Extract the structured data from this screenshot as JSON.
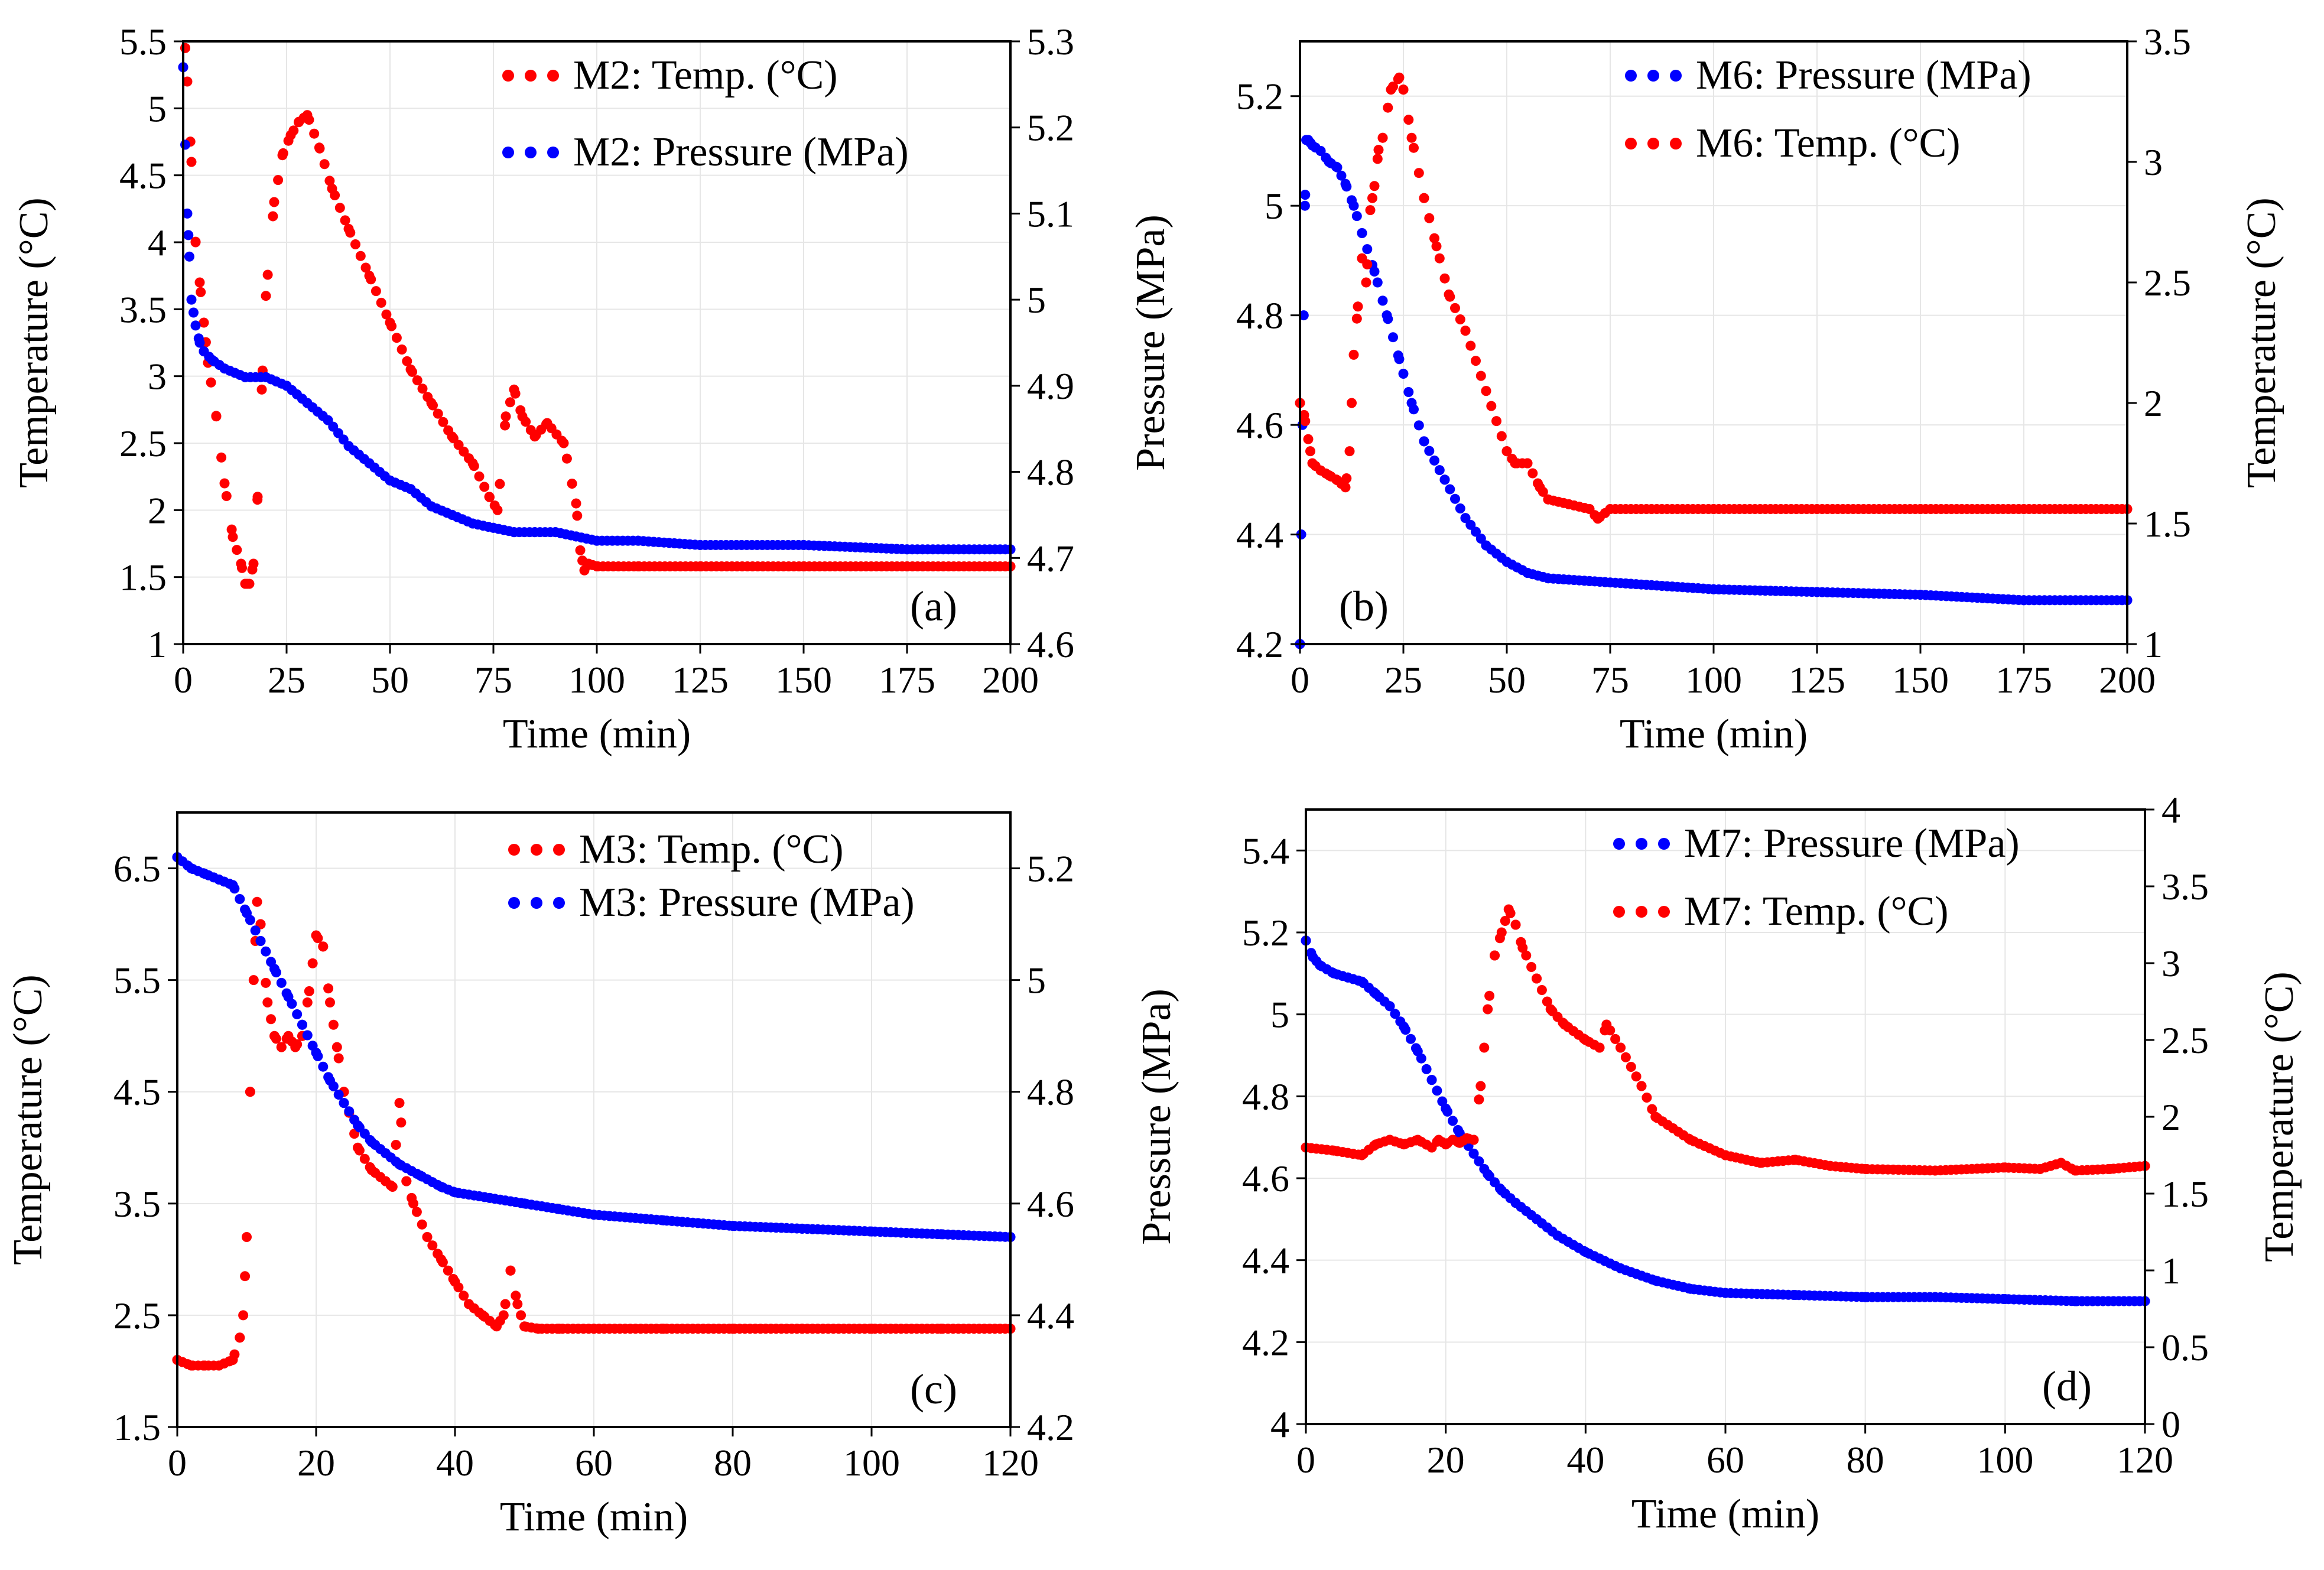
{
  "colors": {
    "temp": "#ff0000",
    "pressure": "#0000ff"
  },
  "chart_data": [
    {
      "id": "a",
      "type": "scatter",
      "panel_label": "(a)",
      "xlabel": "Time (min)",
      "left_axis": {
        "label": "Temperature (°C)",
        "series": "temp",
        "ylim": [
          1,
          5.5
        ],
        "ticks": [
          1,
          1.5,
          2,
          2.5,
          3,
          3.5,
          4,
          4.5,
          5,
          5.5
        ],
        "tick_labels": [
          "1",
          "1.5",
          "2",
          "2.5",
          "3",
          "3.5",
          "4",
          "4.5",
          "5",
          "5.5"
        ]
      },
      "right_axis": {
        "label": "",
        "series": "pressure",
        "ylim": [
          4.6,
          5.3
        ],
        "ticks": [
          4.6,
          4.7,
          4.8,
          4.9,
          5.0,
          5.1,
          5.2,
          5.3
        ],
        "tick_labels": [
          "4.6",
          "4.7",
          "4.8",
          "4.9",
          "5",
          "5.1",
          "5.2",
          "5.3"
        ]
      },
      "xlim": [
        0,
        200
      ],
      "xticks": [
        0,
        25,
        50,
        75,
        100,
        125,
        150,
        175,
        200
      ],
      "xtick_labels": [
        "0",
        "25",
        "50",
        "75",
        "100",
        "125",
        "150",
        "175",
        "200"
      ],
      "legend": [
        "M2: Temp. (°C)",
        "M2: Pressure (MPa)"
      ],
      "series": [
        {
          "name": "M2: Temp. (°C)",
          "key": "temp",
          "axis": "left",
          "x": [
            0.5,
            1,
            2,
            3,
            4,
            5,
            6,
            8,
            10,
            12,
            14,
            15,
            16,
            17,
            18,
            19,
            20,
            22,
            24,
            26,
            28,
            30,
            33,
            36,
            40,
            45,
            50,
            55,
            60,
            65,
            70,
            74,
            76,
            78,
            80,
            82,
            85,
            88,
            92,
            95,
            96,
            97,
            98,
            100,
            110,
            125,
            150,
            175,
            200
          ],
          "y": [
            5.45,
            5.2,
            4.6,
            4.0,
            3.7,
            3.4,
            3.1,
            2.7,
            2.2,
            1.8,
            1.6,
            1.45,
            1.45,
            1.6,
            2.1,
            2.9,
            3.6,
            4.3,
            4.65,
            4.8,
            4.9,
            4.95,
            4.7,
            4.4,
            4.1,
            3.75,
            3.4,
            3.05,
            2.8,
            2.55,
            2.35,
            2.1,
            2.0,
            2.7,
            2.9,
            2.7,
            2.55,
            2.65,
            2.5,
            2.05,
            1.7,
            1.55,
            1.6,
            1.58,
            1.58,
            1.58,
            1.58,
            1.58,
            1.58
          ]
        },
        {
          "name": "M2: Pressure (MPa)",
          "key": "pressure",
          "axis": "right",
          "x": [
            0,
            0.5,
            1,
            1.5,
            2,
            3,
            4,
            5,
            7,
            10,
            15,
            20,
            25,
            30,
            35,
            40,
            45,
            50,
            55,
            60,
            65,
            70,
            75,
            80,
            85,
            90,
            95,
            100,
            110,
            125,
            150,
            175,
            200
          ],
          "y": [
            5.27,
            5.18,
            5.1,
            5.05,
            5.0,
            4.97,
            4.95,
            4.94,
            4.93,
            4.92,
            4.91,
            4.91,
            4.9,
            4.88,
            4.86,
            4.83,
            4.81,
            4.79,
            4.78,
            4.76,
            4.75,
            4.74,
            4.735,
            4.73,
            4.73,
            4.73,
            4.725,
            4.72,
            4.72,
            4.715,
            4.715,
            4.71,
            4.71
          ]
        }
      ]
    },
    {
      "id": "b",
      "type": "scatter",
      "panel_label": "(b)",
      "xlabel": "Time (min)",
      "left_axis": {
        "label": "Pressure (MPa)",
        "series": "pressure",
        "ylim": [
          4.2,
          5.3
        ],
        "ticks": [
          4.2,
          4.4,
          4.6,
          4.8,
          5.0,
          5.2
        ],
        "tick_labels": [
          "4.2",
          "4.4",
          "4.6",
          "4.8",
          "5",
          "5.2"
        ]
      },
      "right_axis": {
        "label": "Temperature (°C)",
        "series": "temp",
        "ylim": [
          1,
          3.5
        ],
        "ticks": [
          1,
          1.5,
          2,
          2.5,
          3,
          3.5
        ],
        "tick_labels": [
          "1",
          "1.5",
          "2",
          "2.5",
          "3",
          "3.5"
        ]
      },
      "xlim": [
        0,
        200
      ],
      "xticks": [
        0,
        25,
        50,
        75,
        100,
        125,
        150,
        175,
        200
      ],
      "xtick_labels": [
        "0",
        "25",
        "50",
        "75",
        "100",
        "125",
        "150",
        "175",
        "200"
      ],
      "legend": [
        "M6: Pressure (MPa)",
        "M6: Temp. (°C)"
      ],
      "series": [
        {
          "name": "M6: Pressure (MPa)",
          "key": "pressure",
          "axis": "left",
          "x": [
            0,
            0.3,
            0.6,
            0.9,
            1.2,
            1.5,
            2,
            3,
            5,
            7,
            9,
            11,
            13,
            15,
            18,
            21,
            24,
            27,
            30,
            35,
            40,
            45,
            50,
            55,
            60,
            70,
            80,
            100,
            125,
            150,
            175,
            200
          ],
          "y": [
            4.2,
            4.4,
            4.6,
            4.8,
            5.0,
            5.12,
            5.12,
            5.11,
            5.1,
            5.08,
            5.07,
            5.04,
            5.0,
            4.95,
            4.88,
            4.8,
            4.72,
            4.64,
            4.57,
            4.5,
            4.43,
            4.38,
            4.35,
            4.33,
            4.32,
            4.315,
            4.31,
            4.3,
            4.295,
            4.29,
            4.28,
            4.28
          ]
        },
        {
          "name": "M6: Temp. (°C)",
          "key": "temp",
          "axis": "right",
          "x": [
            0,
            1,
            2,
            3,
            5,
            7,
            9,
            11,
            12,
            13,
            14,
            15,
            16,
            17,
            18,
            19,
            20,
            22,
            24,
            25,
            27,
            30,
            33,
            36,
            40,
            45,
            50,
            52,
            55,
            58,
            60,
            65,
            70,
            72,
            75,
            100,
            125,
            150,
            175,
            200
          ],
          "y": [
            2.0,
            1.95,
            1.85,
            1.75,
            1.72,
            1.7,
            1.68,
            1.65,
            1.8,
            2.2,
            2.4,
            2.6,
            2.5,
            2.8,
            2.9,
            3.05,
            3.1,
            3.3,
            3.35,
            3.3,
            3.1,
            2.85,
            2.65,
            2.45,
            2.3,
            2.05,
            1.8,
            1.75,
            1.75,
            1.65,
            1.6,
            1.58,
            1.56,
            1.52,
            1.56,
            1.56,
            1.56,
            1.56,
            1.56,
            1.56
          ]
        }
      ]
    },
    {
      "id": "c",
      "type": "scatter",
      "panel_label": "(c)",
      "xlabel": "Time (min)",
      "left_axis": {
        "label": "Temperature (°C)",
        "series": "temp",
        "ylim": [
          1.5,
          7.0
        ],
        "ticks": [
          1.5,
          2.5,
          3.5,
          4.5,
          5.5,
          6.5
        ],
        "tick_labels": [
          "1.5",
          "2.5",
          "3.5",
          "4.5",
          "5.5",
          "6.5"
        ]
      },
      "right_axis": {
        "label": "",
        "series": "pressure",
        "ylim": [
          4.2,
          5.3
        ],
        "ticks": [
          4.2,
          4.4,
          4.6,
          4.8,
          5.0,
          5.2
        ],
        "tick_labels": [
          "4.2",
          "4.4",
          "4.6",
          "4.8",
          "5",
          "5.2"
        ]
      },
      "xlim": [
        0,
        120
      ],
      "xticks": [
        0,
        20,
        40,
        60,
        80,
        100,
        120
      ],
      "xtick_labels": [
        "0",
        "20",
        "40",
        "60",
        "80",
        "100",
        "120"
      ],
      "legend": [
        "M3: Temp. (°C)",
        "M3: Pressure (MPa)"
      ],
      "series": [
        {
          "name": "M3: Temp. (°C)",
          "key": "temp",
          "axis": "left",
          "x": [
            0,
            2,
            4,
            6,
            8,
            9,
            9.5,
            10,
            10.5,
            11,
            11.5,
            12,
            13,
            14,
            15,
            16,
            17,
            18,
            19,
            20,
            21,
            22,
            23,
            24,
            26,
            28,
            30,
            31,
            32,
            33,
            34,
            36,
            38,
            40,
            42,
            44,
            46,
            47,
            48,
            49,
            50,
            52,
            55,
            60,
            70,
            80,
            90,
            100,
            110,
            120
          ],
          "y": [
            2.1,
            2.05,
            2.05,
            2.05,
            2.1,
            2.3,
            2.5,
            3.2,
            4.5,
            5.5,
            6.2,
            6.0,
            5.3,
            5.0,
            4.9,
            5.0,
            4.9,
            5.0,
            5.4,
            5.9,
            5.8,
            5.3,
            4.9,
            4.5,
            4.0,
            3.8,
            3.7,
            3.65,
            4.4,
            3.7,
            3.5,
            3.2,
            3.0,
            2.8,
            2.6,
            2.5,
            2.4,
            2.5,
            2.9,
            2.6,
            2.4,
            2.38,
            2.38,
            2.38,
            2.38,
            2.38,
            2.38,
            2.38,
            2.38,
            2.38
          ]
        },
        {
          "name": "M3: Pressure (MPa)",
          "key": "pressure",
          "axis": "right",
          "x": [
            0,
            2,
            4,
            6,
            8,
            10,
            12,
            14,
            16,
            18,
            20,
            22,
            24,
            26,
            28,
            30,
            32,
            35,
            38,
            40,
            45,
            50,
            55,
            60,
            70,
            80,
            90,
            100,
            110,
            120
          ],
          "y": [
            5.22,
            5.2,
            5.19,
            5.18,
            5.17,
            5.12,
            5.07,
            5.02,
            4.97,
            4.92,
            4.87,
            4.82,
            4.78,
            4.74,
            4.71,
            4.69,
            4.67,
            4.65,
            4.63,
            4.62,
            4.61,
            4.6,
            4.59,
            4.58,
            4.57,
            4.56,
            4.555,
            4.55,
            4.545,
            4.54
          ]
        }
      ]
    },
    {
      "id": "d",
      "type": "scatter",
      "panel_label": "(d)",
      "xlabel": "Time (min)",
      "left_axis": {
        "label": "Pressure (MPa)",
        "series": "pressure",
        "ylim": [
          4.0,
          5.5
        ],
        "ticks": [
          4.0,
          4.2,
          4.4,
          4.6,
          4.8,
          5.0,
          5.2,
          5.4
        ],
        "tick_labels": [
          "4",
          "4.2",
          "4.4",
          "4.6",
          "4.8",
          "5",
          "5.2",
          "5.4"
        ]
      },
      "right_axis": {
        "label": "Temperature (°C)",
        "series": "temp",
        "ylim": [
          0,
          4
        ],
        "ticks": [
          0,
          0.5,
          1,
          1.5,
          2,
          2.5,
          3,
          3.5,
          4
        ],
        "tick_labels": [
          "0",
          "0.5",
          "1",
          "1.5",
          "2",
          "2.5",
          "3",
          "3.5",
          "4"
        ]
      },
      "xlim": [
        0,
        120
      ],
      "xticks": [
        0,
        20,
        40,
        60,
        80,
        100,
        120
      ],
      "xtick_labels": [
        "0",
        "20",
        "40",
        "60",
        "80",
        "100",
        "120"
      ],
      "legend": [
        "M7: Pressure (MPa)",
        "M7: Temp. (°C)"
      ],
      "series": [
        {
          "name": "M7: Pressure (MPa)",
          "key": "pressure",
          "axis": "left",
          "x": [
            0,
            1,
            2,
            4,
            6,
            8,
            10,
            12,
            14,
            16,
            18,
            20,
            22,
            24,
            26,
            28,
            30,
            33,
            36,
            40,
            45,
            50,
            55,
            60,
            70,
            80,
            90,
            100,
            110,
            120
          ],
          "y": [
            5.18,
            5.14,
            5.12,
            5.1,
            5.09,
            5.08,
            5.05,
            5.02,
            4.97,
            4.91,
            4.84,
            4.77,
            4.71,
            4.66,
            4.61,
            4.57,
            4.54,
            4.5,
            4.46,
            4.42,
            4.38,
            4.35,
            4.33,
            4.32,
            4.315,
            4.31,
            4.31,
            4.305,
            4.3,
            4.3
          ]
        },
        {
          "name": "M7: Temp. (°C)",
          "key": "temp",
          "axis": "right",
          "x": [
            0,
            4,
            8,
            10,
            12,
            14,
            16,
            18,
            19,
            20,
            21,
            22,
            23,
            24,
            25,
            26,
            27,
            28,
            29,
            30,
            31,
            33,
            35,
            37,
            40,
            42,
            43,
            45,
            48,
            50,
            55,
            60,
            65,
            70,
            75,
            80,
            90,
            100,
            105,
            108,
            110,
            115,
            120
          ],
          "y": [
            1.8,
            1.78,
            1.75,
            1.82,
            1.85,
            1.82,
            1.85,
            1.8,
            1.85,
            1.82,
            1.85,
            1.83,
            1.86,
            1.85,
            2.2,
            2.7,
            3.05,
            3.2,
            3.35,
            3.25,
            3.1,
            2.9,
            2.7,
            2.6,
            2.5,
            2.45,
            2.6,
            2.45,
            2.2,
            2.0,
            1.85,
            1.75,
            1.7,
            1.72,
            1.68,
            1.66,
            1.65,
            1.67,
            1.66,
            1.7,
            1.65,
            1.66,
            1.68
          ]
        }
      ]
    }
  ]
}
